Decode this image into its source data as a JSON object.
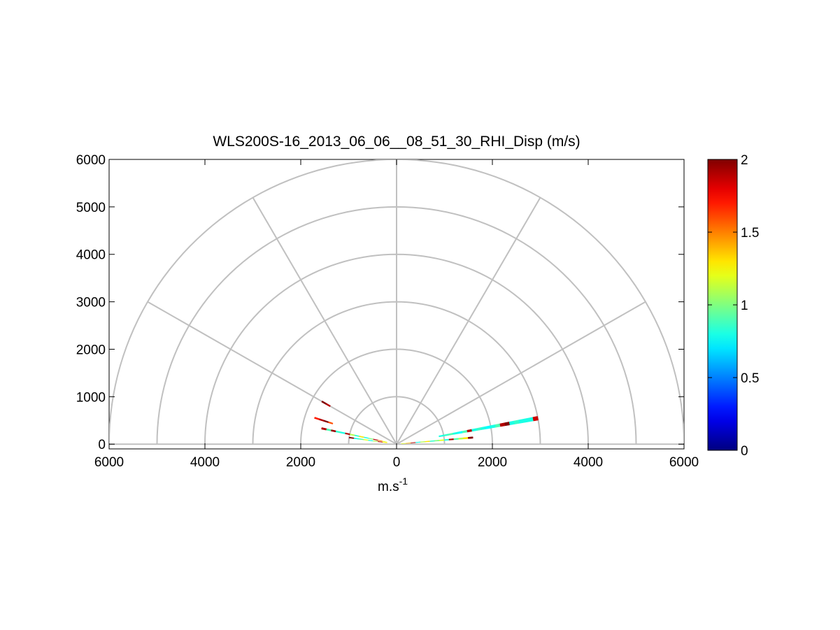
{
  "chart_data": {
    "type": "heatmap",
    "subtype": "polar-rhi",
    "title": "WLS200S-16_2013_06_06__08_51_30_RHI_Disp (m/s)",
    "xlabel": "m.s-1",
    "xlabel_base": "m.s",
    "xlabel_sup": "-1",
    "ylabel": "",
    "xlim": [
      -6000,
      6000
    ],
    "ylim": [
      -100,
      6000
    ],
    "x_tick_values": [
      -6000,
      -4000,
      -2000,
      0,
      2000,
      4000,
      6000
    ],
    "x_tick_labels": [
      "6000",
      "4000",
      "2000",
      "0",
      "2000",
      "4000",
      "6000"
    ],
    "y_tick_values": [
      0,
      1000,
      2000,
      3000,
      4000,
      5000,
      6000
    ],
    "y_tick_labels": [
      "0",
      "1000",
      "2000",
      "3000",
      "4000",
      "5000",
      "6000"
    ],
    "polar_grid": {
      "range_rings": [
        1000,
        2000,
        3000,
        4000,
        5000,
        6000
      ],
      "spoke_angles_deg": [
        0,
        30,
        60,
        90,
        120,
        150,
        180
      ]
    },
    "grid": true,
    "colorbar": {
      "position": "right",
      "min": 0,
      "max": 2,
      "tick_values": [
        0,
        0.5,
        1,
        1.5,
        2
      ],
      "tick_labels": [
        "0",
        "0.5",
        "1",
        "1.5",
        "2"
      ],
      "colormap": "jet"
    },
    "scan_bands": [
      {
        "name": "",
        "elevation_deg": 10.5,
        "range_start": 900,
        "range_end": 3000,
        "gate_length": 100,
        "width_deg": 1.6,
        "values": [
          0.8,
          0.85,
          0.9,
          0.8,
          0.75,
          0.9,
          1.9,
          0.8,
          0.85,
          0.8,
          0.75,
          0.8,
          0.9,
          1.9,
          2.0,
          0.8,
          0.85,
          0.8,
          0.8,
          0.8,
          1.85
        ]
      },
      {
        "name": "",
        "elevation_deg": 5,
        "range_start": 100,
        "range_end": 1500,
        "gate_length": 100,
        "width_deg": 1.2,
        "values": [
          1.2,
          1.4,
          1.9,
          0.8,
          1.1,
          1.3,
          0.85,
          1.0,
          1.2,
          0.8,
          1.9,
          0.9,
          1.1,
          1.3,
          2.0
        ]
      },
      {
        "name": "",
        "elevation_deg": 168,
        "range_start": 200,
        "range_end": 1500,
        "gate_length": 100,
        "width_deg": 1.3,
        "values": [
          1.2,
          1.5,
          1.9,
          1.0,
          0.8,
          1.3,
          0.85,
          1.1,
          1.9,
          0.8,
          0.85,
          1.95,
          0.9,
          1.9
        ]
      },
      {
        "name": "",
        "elevation_deg": 172,
        "range_start": 200,
        "range_end": 900,
        "gate_length": 100,
        "width_deg": 1.2,
        "values": [
          1.3,
          1.9,
          1.1,
          0.8,
          1.2,
          0.9,
          0.8,
          2.0
        ]
      },
      {
        "name": "",
        "elevation_deg": 162,
        "range_start": 1400,
        "range_end": 1700,
        "gate_length": 100,
        "width_deg": 1.0,
        "values": [
          1.6,
          2.0,
          1.9,
          1.7
        ]
      },
      {
        "name": "",
        "elevation_deg": 150,
        "range_start": 1600,
        "range_end": 1700,
        "gate_length": 100,
        "width_deg": 1.0,
        "values": [
          1.9,
          2.0
        ]
      }
    ]
  }
}
